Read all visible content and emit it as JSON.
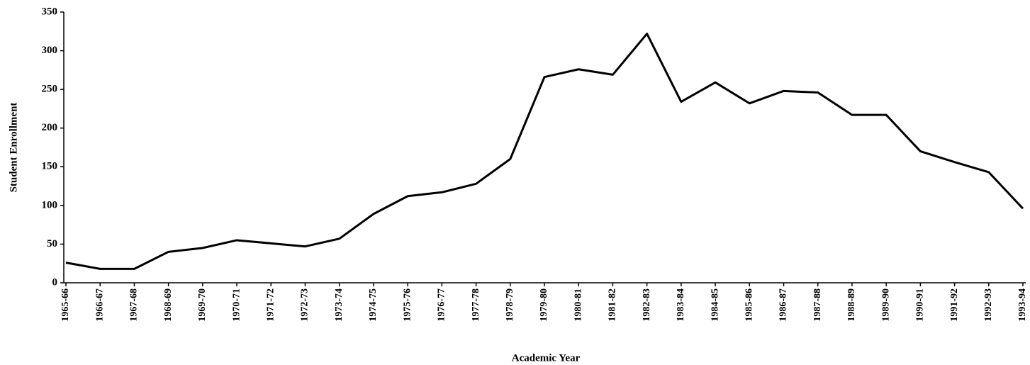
{
  "chart_data": {
    "type": "line",
    "x_label": "Academic Year",
    "y_label": "Student Enrollment",
    "categories": [
      "1965-66",
      "1966-67",
      "1967-68",
      "1968-69",
      "1969-70",
      "1970-71",
      "1971-72",
      "1972-73",
      "1973-74",
      "1974-75",
      "1975-76",
      "1976-77",
      "1977-78",
      "1978-79",
      "1979-80",
      "1980-81",
      "1981-82",
      "1982-83",
      "1983-84",
      "1984-85",
      "1985-86",
      "1986-87",
      "1987-88",
      "1988-89",
      "1989-90",
      "1990-91",
      "1991-92",
      "1992-93",
      "1993-94"
    ],
    "series": [
      {
        "name": "Student Enrollment",
        "color": "#000000",
        "values": [
          26,
          18,
          18,
          40,
          45,
          55,
          51,
          47,
          57,
          89,
          112,
          117,
          128,
          160,
          266,
          276,
          269,
          322,
          234,
          259,
          232,
          248,
          246,
          217,
          217,
          170,
          156,
          143,
          96
        ]
      }
    ],
    "ylim": [
      0,
      350
    ],
    "yticks": [
      0,
      50,
      100,
      150,
      200,
      250,
      300,
      350
    ],
    "grid": false
  }
}
